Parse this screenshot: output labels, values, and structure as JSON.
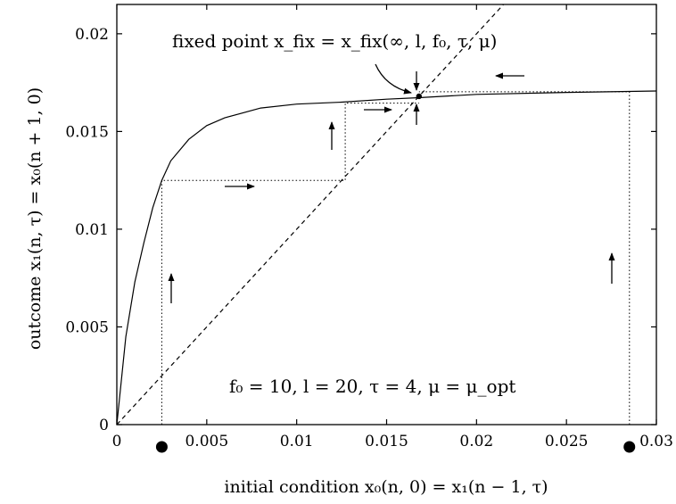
{
  "chart_data": {
    "type": "line",
    "xlabel": "initial condition x₀(n, 0) = x₁(n − 1, τ)",
    "ylabel": "outcome x₁(n, τ) = x₀(n + 1, 0)",
    "xlim": [
      0,
      0.03
    ],
    "ylim": [
      0,
      0.0215
    ],
    "x_ticks": [
      "0",
      "0.005",
      "0.01",
      "0.015",
      "0.02",
      "0.025",
      "0.03"
    ],
    "y_ticks": [
      "0",
      "0.005",
      "0.01",
      "0.015",
      "0.02"
    ],
    "series": [
      {
        "name": "outcome curve",
        "style": "solid",
        "points": [
          [
            0,
            0
          ],
          [
            0.0005,
            0.0045
          ],
          [
            0.001,
            0.0073
          ],
          [
            0.0015,
            0.0093
          ],
          [
            0.002,
            0.0111
          ],
          [
            0.0025,
            0.0125
          ],
          [
            0.003,
            0.0135
          ],
          [
            0.004,
            0.0146
          ],
          [
            0.005,
            0.0153
          ],
          [
            0.006,
            0.0157
          ],
          [
            0.008,
            0.0162
          ],
          [
            0.01,
            0.0164
          ],
          [
            0.0125,
            0.0165
          ],
          [
            0.015,
            0.01665
          ],
          [
            0.0168,
            0.01673
          ],
          [
            0.02,
            0.0169
          ],
          [
            0.025,
            0.017
          ],
          [
            0.03,
            0.01707
          ]
        ]
      },
      {
        "name": "identity line",
        "style": "dashed",
        "points": [
          [
            0,
            0
          ],
          [
            0.0215,
            0.0215
          ]
        ]
      }
    ],
    "iteration_paths": [
      {
        "points": [
          [
            0.0025,
            0
          ],
          [
            0.0025,
            0.0125
          ],
          [
            0.0127,
            0.0125
          ],
          [
            0.0127,
            0.01645
          ],
          [
            0.0168,
            0.01645
          ]
        ]
      },
      {
        "points": [
          [
            0.0285,
            0
          ],
          [
            0.0285,
            0.01703
          ],
          [
            0.0168,
            0.01703
          ]
        ]
      }
    ],
    "start_markers": [
      0.0025,
      0.0285
    ],
    "fixed_point": [
      0.0168,
      0.0168
    ],
    "annotations": {
      "fixed_point_label": "fixed point x_fix = x_fix(∞, l, f₀, τ, μ)",
      "params_label": "f₀ = 10, l = 20, τ = 4, μ = μ_opt"
    },
    "grid": false
  }
}
